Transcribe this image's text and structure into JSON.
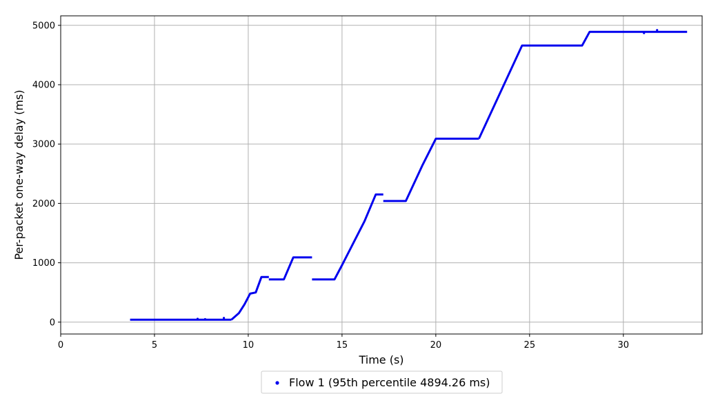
{
  "chart_data": {
    "type": "scatter",
    "xlabel": "Time (s)",
    "ylabel": "Per-packet one-way delay (ms)",
    "xlim": [
      0,
      34.2
    ],
    "ylim": [
      -200,
      5160
    ],
    "xticks": [
      0,
      5,
      10,
      15,
      20,
      25,
      30
    ],
    "yticks": [
      0,
      1000,
      2000,
      3000,
      4000,
      5000
    ],
    "grid": true,
    "legend_position": "bottom-center",
    "series": [
      {
        "name": "Flow 1 (95th percentile 4894.26 ms)",
        "color": "#0000ee",
        "segments": [
          [
            [
              3.7,
              40
            ],
            [
              9.1,
              40
            ]
          ],
          [
            [
              9.1,
              40
            ],
            [
              9.5,
              150
            ],
            [
              9.8,
              300
            ],
            [
              10.1,
              480
            ],
            [
              10.4,
              500
            ],
            [
              10.7,
              760
            ],
            [
              11.1,
              760
            ]
          ],
          [
            [
              11.1,
              720
            ],
            [
              11.9,
              720
            ],
            [
              12.4,
              1090
            ],
            [
              13.4,
              1090
            ]
          ],
          [
            [
              13.4,
              720
            ],
            [
              14.6,
              720
            ],
            [
              15.0,
              960
            ],
            [
              16.2,
              1700
            ],
            [
              16.8,
              2150
            ],
            [
              17.2,
              2150
            ]
          ],
          [
            [
              17.2,
              2040
            ],
            [
              18.4,
              2040
            ],
            [
              19.3,
              2650
            ],
            [
              20.0,
              3090
            ],
            [
              22.3,
              3090
            ]
          ],
          [
            [
              22.3,
              3090
            ],
            [
              24.6,
              4660
            ],
            [
              27.8,
              4660
            ],
            [
              28.2,
              4890
            ],
            [
              33.4,
              4890
            ]
          ]
        ],
        "outliers": [
          [
            7.3,
            55
          ],
          [
            7.7,
            50
          ],
          [
            8.7,
            70
          ],
          [
            31.1,
            4870
          ],
          [
            31.8,
            4920
          ]
        ]
      }
    ]
  }
}
